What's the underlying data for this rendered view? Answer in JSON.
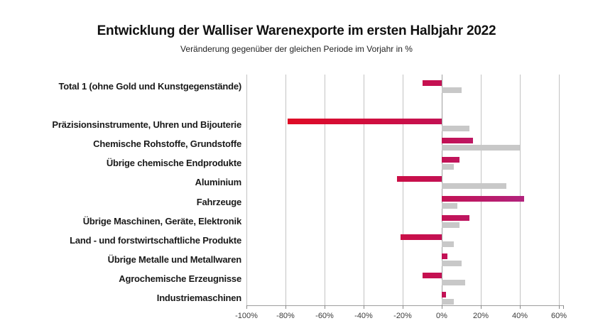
{
  "title": "Entwicklung der Walliser Warenexporte im ersten Halbjahr 2022",
  "subtitle": "Veränderung gegenüber der gleichen Periode im Vorjahr in %",
  "chart_data": {
    "type": "bar",
    "orientation": "horizontal",
    "unit": "%",
    "categories": [
      "Total 1 (ohne Gold und Kunstgegenstände)",
      "Präzisionsinstrumente, Uhren und Bijouterie",
      "Chemische Rohstoffe, Grundstoffe",
      "Übrige chemische Endprodukte",
      "Aluminium",
      "Fahrzeuge",
      "Übrige Maschinen, Geräte, Elektronik",
      "Land - und forstwirtschaftliche Produkte",
      "Übrige Metalle und Metallwaren",
      "Agrochemische Erzeugnisse",
      "Industriemaschinen"
    ],
    "series": [
      {
        "name": "red-magenta-bars",
        "values": [
          -10,
          -79,
          16,
          9,
          -23,
          42,
          14,
          -21,
          3,
          -10,
          2
        ]
      },
      {
        "name": "gray-bars",
        "values": [
          10,
          14,
          40,
          6,
          33,
          8,
          9,
          6,
          10,
          12,
          6
        ]
      }
    ],
    "xlim": [
      -100,
      60
    ],
    "x_tick_values": [
      -100,
      -80,
      -60,
      -40,
      -20,
      0,
      20,
      40,
      60
    ],
    "x_tick_labels": [
      "-100%",
      "-80%",
      "-60%",
      "-40%",
      "-20%",
      "0%",
      "20%",
      "40%",
      "60%"
    ],
    "grid": true,
    "legend_position": "none",
    "gap_after_first_category": true
  },
  "colors": {
    "bar_gradient_stops": [
      "#e60a18",
      "#c31154",
      "#ab2a8f"
    ],
    "gray_bar": "#c8c8c8",
    "gridline": "#c3c3c3",
    "zero_line": "#9e9e9e",
    "axis_line": "#9e9e9e",
    "tick_color": "#8a8a8a",
    "tick_label": "#3c3c3c",
    "category_label": "#1a1a1a",
    "title_color": "#111111"
  }
}
